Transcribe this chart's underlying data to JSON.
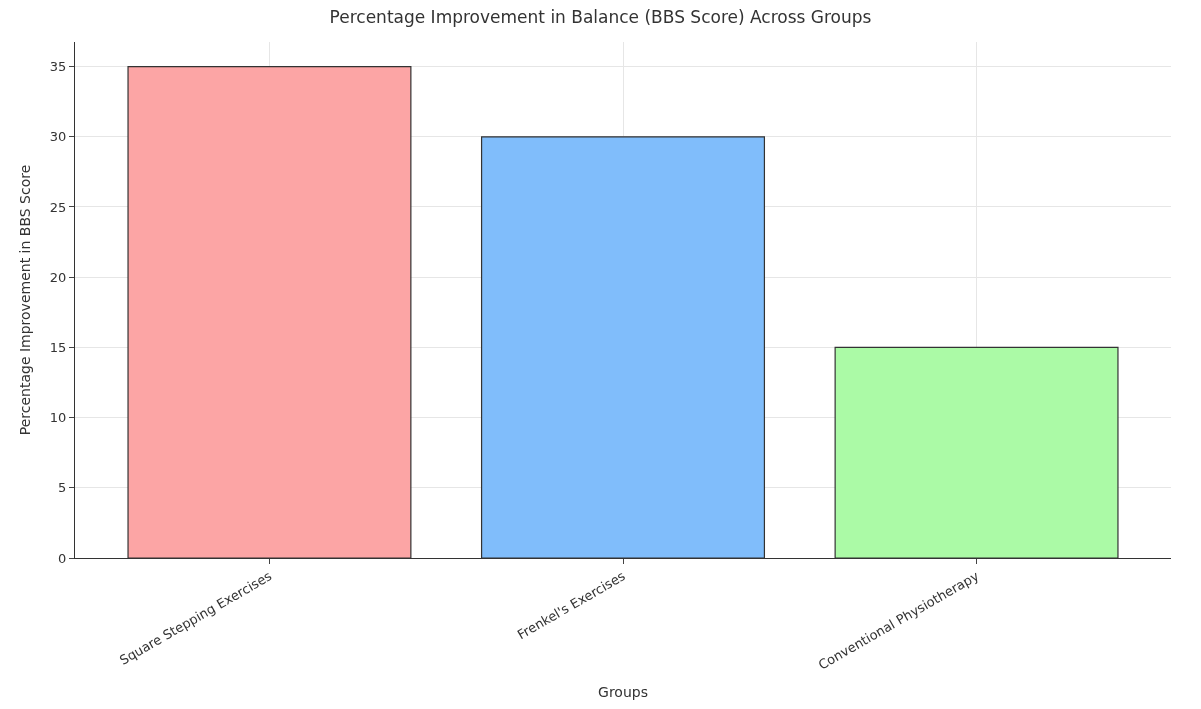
{
  "chart_data": {
    "type": "bar",
    "title": "Percentage Improvement in Balance (BBS Score) Across Groups",
    "xlabel": "Groups",
    "ylabel": "Percentage Improvement in BBS Score",
    "categories": [
      "Square Stepping Exercises",
      "Frenkel's Exercises",
      "Conventional Physiotherapy"
    ],
    "values": [
      35,
      30,
      15
    ],
    "colors": [
      "#fca5a5",
      "#80bdfb",
      "#abfaa6"
    ],
    "ylim": [
      0,
      36.75
    ],
    "yticks": [
      0,
      5,
      10,
      15,
      20,
      25,
      30,
      35
    ],
    "grid": true
  }
}
